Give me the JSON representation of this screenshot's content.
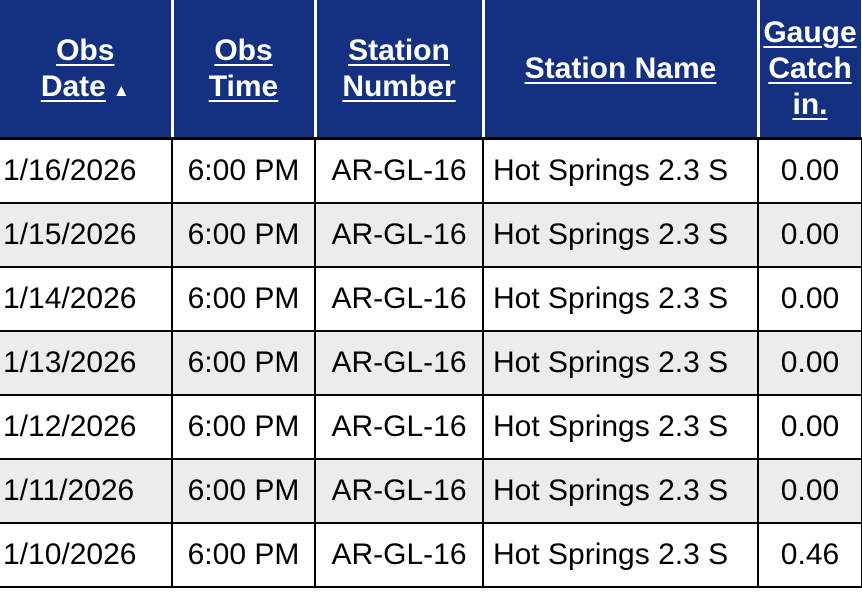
{
  "table": {
    "columns": {
      "obs_date": {
        "label": "Obs\nDate",
        "sort_indicator": "▲"
      },
      "obs_time": {
        "label": "Obs\nTime"
      },
      "station_number": {
        "label": "Station\nNumber"
      },
      "station_name": {
        "label": "Station Name"
      },
      "gauge_catch": {
        "label": "Gauge\nCatch\nin."
      }
    },
    "rows": [
      {
        "obs_date": "1/16/2026",
        "obs_time": "6:00 PM",
        "station_number": "AR-GL-16",
        "station_name": "Hot Springs 2.3 S",
        "gauge_catch_in": "0.00"
      },
      {
        "obs_date": "1/15/2026",
        "obs_time": "6:00 PM",
        "station_number": "AR-GL-16",
        "station_name": "Hot Springs 2.3 S",
        "gauge_catch_in": "0.00"
      },
      {
        "obs_date": "1/14/2026",
        "obs_time": "6:00 PM",
        "station_number": "AR-GL-16",
        "station_name": "Hot Springs 2.3 S",
        "gauge_catch_in": "0.00"
      },
      {
        "obs_date": "1/13/2026",
        "obs_time": "6:00 PM",
        "station_number": "AR-GL-16",
        "station_name": "Hot Springs 2.3 S",
        "gauge_catch_in": "0.00"
      },
      {
        "obs_date": "1/12/2026",
        "obs_time": "6:00 PM",
        "station_number": "AR-GL-16",
        "station_name": "Hot Springs 2.3 S",
        "gauge_catch_in": "0.00"
      },
      {
        "obs_date": "1/11/2026",
        "obs_time": "6:00 PM",
        "station_number": "AR-GL-16",
        "station_name": "Hot Springs 2.3 S",
        "gauge_catch_in": "0.00"
      },
      {
        "obs_date": "1/10/2026",
        "obs_time": "6:00 PM",
        "station_number": "AR-GL-16",
        "station_name": "Hot Springs 2.3 S",
        "gauge_catch_in": "0.46"
      }
    ]
  },
  "colors": {
    "header_bg": "#143181",
    "header_text": "#ffffff",
    "row_alt_bg": "#ececec",
    "border": "#000000"
  }
}
